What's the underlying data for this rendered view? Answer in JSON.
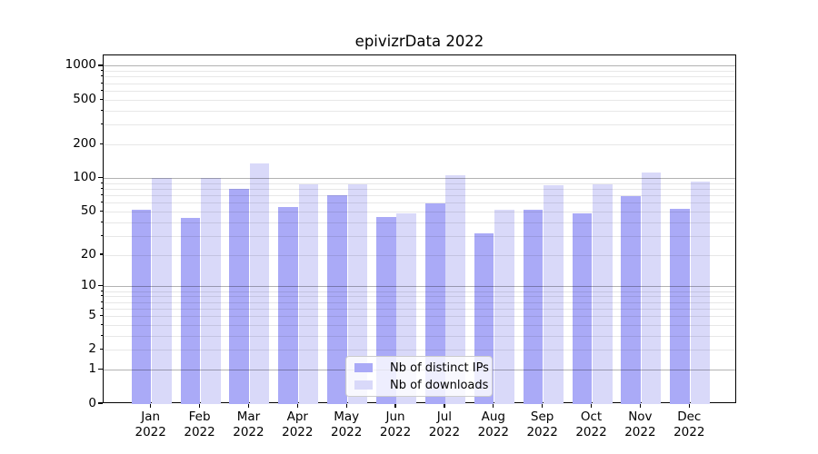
{
  "title": "epivizrData 2022",
  "chart_data": {
    "type": "bar",
    "title": "epivizrData 2022",
    "categories": [
      "Jan",
      "Feb",
      "Mar",
      "Apr",
      "May",
      "Jun",
      "Jul",
      "Aug",
      "Sep",
      "Oct",
      "Nov",
      "Dec"
    ],
    "year_label": "2022",
    "series": [
      {
        "name": "Nb of distinct IPs",
        "color": "#aaaaf7",
        "values": [
          52,
          44,
          80,
          55,
          70,
          45,
          60,
          32,
          52,
          48,
          69,
          53
        ]
      },
      {
        "name": "Nb of downloads",
        "color": "#d9d9f9",
        "values": [
          100,
          101,
          137,
          88,
          88,
          48,
          106,
          52,
          87,
          89,
          113,
          94
        ]
      }
    ],
    "y_axis": {
      "scale": "log1p",
      "tick_labels": [
        "0",
        "1",
        "2",
        "5",
        "10",
        "20",
        "50",
        "100",
        "200",
        "500",
        "1000"
      ],
      "major_tick_values": [
        0,
        1,
        10,
        100,
        1000
      ],
      "ylim": [
        0,
        1200
      ],
      "grid": true
    },
    "legend": {
      "position": "lower-center",
      "labels": [
        "Nb of distinct IPs",
        "Nb of downloads"
      ]
    },
    "colors": {
      "major_grid": "#b0b0b0",
      "minor_grid": "#e8e8e8",
      "axis": "#000000"
    }
  }
}
